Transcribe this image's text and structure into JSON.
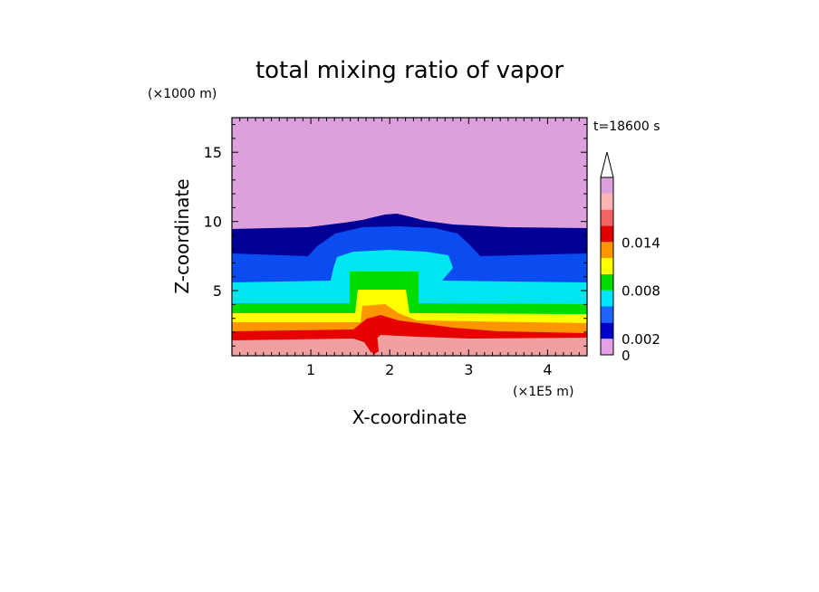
{
  "chart_data": {
    "type": "heatmap",
    "title": "total mixing ratio of vapor",
    "xlabel": "X-coordinate",
    "ylabel": "Z-coordinate",
    "x_unit": "(×1E5 m)",
    "y_unit": "(×1000 m)",
    "time_label": "t=18600 s",
    "xlim": [
      0,
      4.5
    ],
    "ylim": [
      0.3,
      17.5
    ],
    "xticks": [
      "1",
      "2",
      "3",
      "4"
    ],
    "yticks": [
      "5",
      "10",
      "15"
    ],
    "colorbar": {
      "levels": [
        0,
        0.002,
        0.004,
        0.006,
        0.008,
        0.01,
        0.012,
        0.014,
        0.016
      ],
      "tick_labels": [
        {
          "value": 0,
          "label": "0"
        },
        {
          "value": 0.002,
          "label": "0.002"
        },
        {
          "value": 0.008,
          "label": "0.008"
        },
        {
          "value": 0.014,
          "label": "0.014"
        }
      ],
      "colors": [
        "#e6a0e6",
        "#0000c8",
        "#1e64ff",
        "#00e6ff",
        "#00dc00",
        "#ffff00",
        "#ff9600",
        "#e10000",
        "#f06464",
        "#ffb4b4",
        "#dca0dc"
      ]
    },
    "bands": [
      {
        "level_index": 0,
        "color": "#dca0dc",
        "z_low": 9.8,
        "z_high": 17.5
      },
      {
        "level_index": 1,
        "color": "#000096",
        "z_low": 7.5,
        "z_high": 9.8
      },
      {
        "level_index": 2,
        "color": "#0a4cf0",
        "z_low": 5.5,
        "z_high": 7.5
      },
      {
        "level_index": 3,
        "color": "#00e6f0",
        "z_low": 4.0,
        "z_high": 5.5
      },
      {
        "level_index": 4,
        "color": "#00dc00",
        "z_low": 3.3,
        "z_high": 4.0
      },
      {
        "level_index": 5,
        "color": "#ffff00",
        "z_low": 2.6,
        "z_high": 3.3
      },
      {
        "level_index": 6,
        "color": "#ff9600",
        "z_low": 2.0,
        "z_high": 2.6
      },
      {
        "level_index": 7,
        "color": "#e60000",
        "z_low": 1.4,
        "z_high": 2.0
      },
      {
        "level_index": 8,
        "color": "#f0a0a0",
        "z_low": 0.3,
        "z_high": 1.4
      }
    ]
  }
}
